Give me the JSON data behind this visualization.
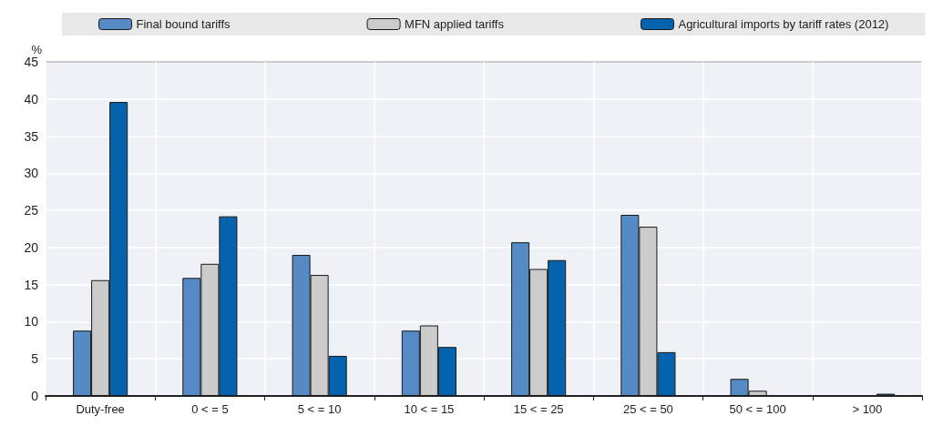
{
  "chart_data": {
    "type": "bar",
    "ylabel": "%",
    "categories": [
      "Duty-free",
      "0 < = 5",
      "5 < = 10",
      "10 < = 15",
      "15 < = 25",
      "25 < = 50",
      "50 < = 100",
      "> 100"
    ],
    "series": [
      {
        "name": "Final bound tariffs",
        "color": "#558ac4",
        "values": [
          8.8,
          15.9,
          19,
          8.8,
          20.7,
          24.4,
          2.3,
          0
        ]
      },
      {
        "name": "MFN applied tariffs",
        "color": "#cbcbcc",
        "values": [
          15.6,
          17.8,
          16.3,
          9.5,
          17.1,
          22.8,
          0.7,
          0
        ]
      },
      {
        "name": "Agricultural imports by tariff rates (2012)",
        "color": "#0563ad",
        "values": [
          39.6,
          24.2,
          5.4,
          6.6,
          18.3,
          5.9,
          0,
          0.3
        ]
      }
    ],
    "ylim": [
      0,
      45
    ],
    "yticks": [
      0,
      5,
      10,
      15,
      20,
      25,
      30,
      35,
      40,
      45
    ],
    "grid": true,
    "legend": "top"
  }
}
